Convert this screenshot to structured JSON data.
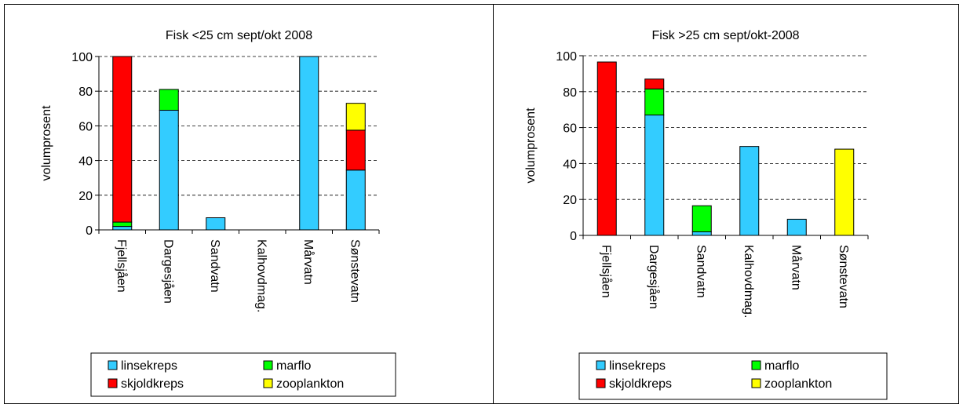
{
  "chart_data": [
    {
      "type": "bar",
      "stacked": true,
      "title": "Fisk <25 cm sept/okt 2008",
      "xlabel": "",
      "ylabel": "volumprosent",
      "ylim": [
        0,
        100
      ],
      "yticks": [
        "0",
        "20",
        "40",
        "60",
        "80",
        "100"
      ],
      "grid": "horizontal dashed",
      "legend_position": "bottom",
      "categories": [
        "Fjellsjåen",
        "Dargesjåen",
        "Sandvatn",
        "Kalhovdmag.",
        "Mårvatn",
        "Sønstevatn"
      ],
      "series": [
        {
          "name": "linsekreps",
          "color": "#33ccff",
          "values": [
            2,
            69,
            7,
            0,
            100,
            34.5
          ]
        },
        {
          "name": "marflo",
          "color": "#00ff00",
          "values": [
            2.5,
            12,
            0,
            0,
            0,
            0
          ]
        },
        {
          "name": "skjoldkreps",
          "color": "#ff0000",
          "values": [
            95.5,
            0,
            0,
            0,
            0,
            23
          ]
        },
        {
          "name": "zooplankton",
          "color": "#ffff00",
          "values": [
            0,
            0,
            0,
            0,
            0,
            15.5
          ]
        }
      ],
      "legend": [
        {
          "name": "linsekreps",
          "color": "#33ccff"
        },
        {
          "name": "marflo",
          "color": "#00ff00"
        },
        {
          "name": "skjoldkreps",
          "color": "#ff0000"
        },
        {
          "name": "zooplankton",
          "color": "#ffff00"
        }
      ]
    },
    {
      "type": "bar",
      "stacked": true,
      "title": "Fisk >25 cm sept/okt-2008",
      "xlabel": "",
      "ylabel": "volumprosent",
      "ylim": [
        0,
        100
      ],
      "yticks": [
        "0",
        "20",
        "40",
        "60",
        "80",
        "100"
      ],
      "grid": "horizontal dashed",
      "legend_position": "bottom",
      "categories": [
        "Fjellsjåen",
        "Dargesjåen",
        "Sandvatn",
        "Kalhovdmag.",
        "Mårvatn",
        "Sønstevatn"
      ],
      "series": [
        {
          "name": "linsekreps",
          "color": "#33ccff",
          "values": [
            0,
            67,
            2,
            49.5,
            9,
            0
          ]
        },
        {
          "name": "marflo",
          "color": "#00ff00",
          "values": [
            0,
            14.5,
            14.5,
            0,
            0,
            0
          ]
        },
        {
          "name": "skjoldkreps",
          "color": "#ff0000",
          "values": [
            96.5,
            5.5,
            0,
            0,
            0,
            0
          ]
        },
        {
          "name": "zooplankton",
          "color": "#ffff00",
          "values": [
            0,
            0,
            0,
            0,
            0,
            48
          ]
        }
      ],
      "legend": [
        {
          "name": "linsekreps",
          "color": "#33ccff"
        },
        {
          "name": "marflo",
          "color": "#00ff00"
        },
        {
          "name": "skjoldkreps",
          "color": "#ff0000"
        },
        {
          "name": "zooplankton",
          "color": "#ffff00"
        }
      ]
    }
  ]
}
